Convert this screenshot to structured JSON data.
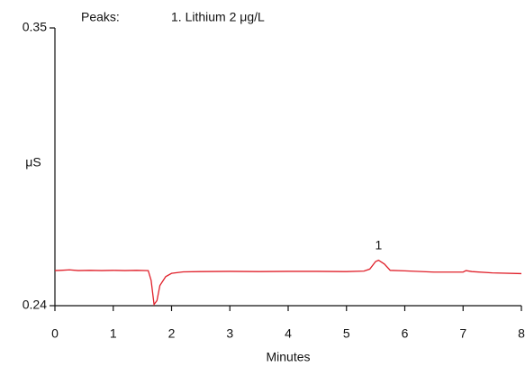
{
  "chart_data": {
    "type": "line",
    "legend_title": "Peaks:",
    "legend_entries": [
      "1. Lithium 2 μg/L"
    ],
    "xlabel": "Minutes",
    "ylabel": "μS",
    "x": [
      0,
      0.1,
      0.25,
      0.4,
      0.6,
      0.8,
      1.0,
      1.2,
      1.4,
      1.6,
      1.65,
      1.7,
      1.75,
      1.8,
      1.9,
      2.0,
      2.2,
      2.5,
      3.0,
      3.5,
      4.0,
      4.5,
      5.0,
      5.3,
      5.4,
      5.5,
      5.55,
      5.65,
      5.75,
      6.0,
      6.5,
      7.0,
      7.05,
      7.15,
      7.5,
      8.0
    ],
    "series": [
      {
        "color": "#e0202a",
        "values": [
          0.2539,
          0.254,
          0.2542,
          0.2539,
          0.254,
          0.2539,
          0.254,
          0.2539,
          0.254,
          0.2539,
          0.25,
          0.2405,
          0.242,
          0.248,
          0.2515,
          0.2528,
          0.2534,
          0.2535,
          0.2536,
          0.2535,
          0.2536,
          0.2536,
          0.2535,
          0.2537,
          0.2545,
          0.2575,
          0.258,
          0.2565,
          0.254,
          0.2538,
          0.2533,
          0.2533,
          0.2539,
          0.2535,
          0.253,
          0.2527
        ]
      }
    ],
    "annotations": [
      {
        "text": "1",
        "x": 5.55,
        "y": 0.258
      }
    ],
    "xlim": [
      0,
      8
    ],
    "xticks": [
      0,
      1,
      2,
      3,
      4,
      5,
      6,
      7,
      8
    ],
    "ylim": [
      0.24,
      0.35
    ],
    "yticks": [
      0.24,
      0.35
    ]
  }
}
